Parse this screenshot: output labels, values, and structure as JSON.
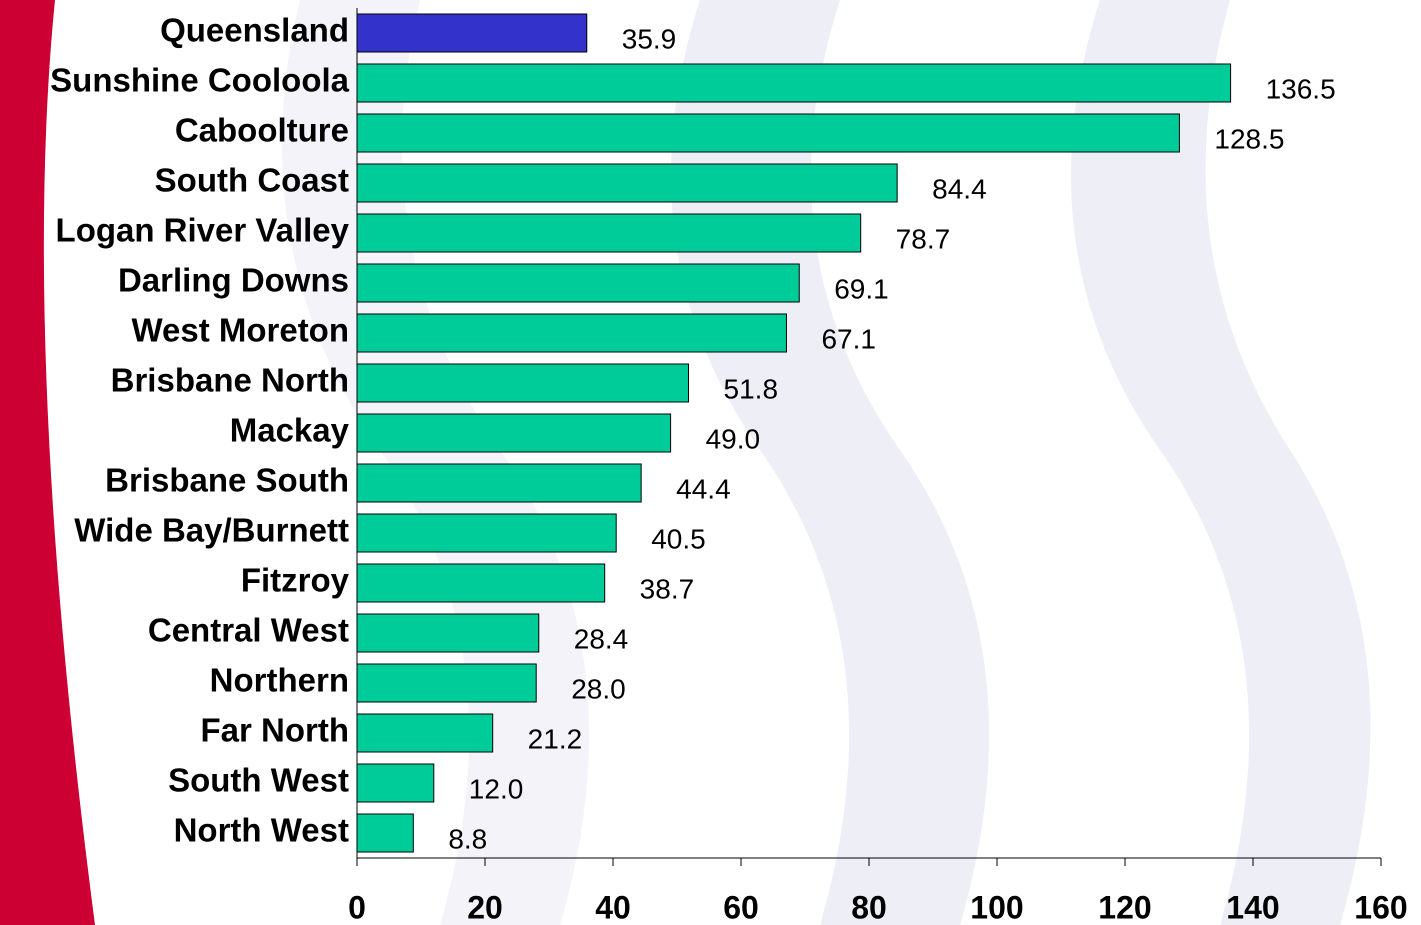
{
  "chart_data": {
    "type": "bar",
    "orientation": "horizontal",
    "categories": [
      "Queensland",
      "Sunshine Cooloola",
      "Caboolture",
      "South Coast",
      "Logan River Valley",
      "Darling Downs",
      "West Moreton",
      "Brisbane North",
      "Mackay",
      "Brisbane South",
      "Wide Bay/Burnett",
      "Fitzroy",
      "Central West",
      "Northern",
      "Far North",
      "South West",
      "North West"
    ],
    "values": [
      35.9,
      136.5,
      128.5,
      84.4,
      78.7,
      69.1,
      67.1,
      51.8,
      49.0,
      44.4,
      40.5,
      38.7,
      28.4,
      28.0,
      21.2,
      12.0,
      8.8
    ],
    "value_labels": [
      "35.9",
      "136.5",
      "128.5",
      "84.4",
      "78.7",
      "69.1",
      "67.1",
      "51.8",
      "49.0",
      "44.4",
      "40.5",
      "38.7",
      "28.4",
      "28.0",
      "21.2",
      "12.0",
      "8.8"
    ],
    "colors": [
      "#3333cc",
      "#00cc99",
      "#00cc99",
      "#00cc99",
      "#00cc99",
      "#00cc99",
      "#00cc99",
      "#00cc99",
      "#00cc99",
      "#00cc99",
      "#00cc99",
      "#00cc99",
      "#00cc99",
      "#00cc99",
      "#00cc99",
      "#00cc99",
      "#00cc99"
    ],
    "xlim": [
      0,
      160
    ],
    "xticks": [
      0,
      20,
      40,
      60,
      80,
      100,
      120,
      140,
      160
    ],
    "grid": false
  }
}
